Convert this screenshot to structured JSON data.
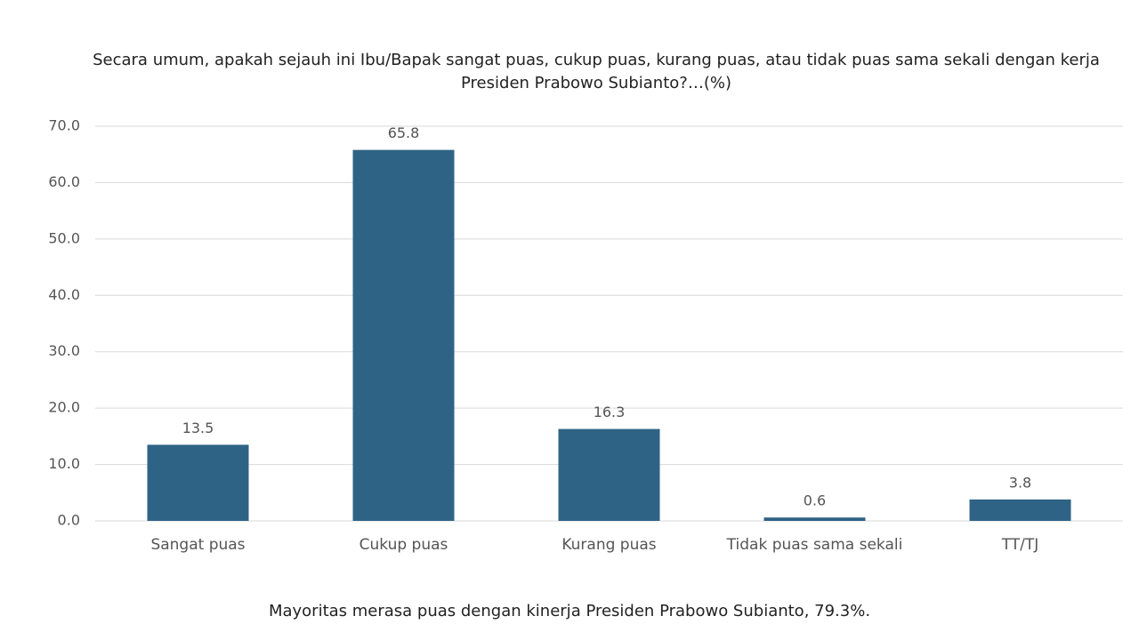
{
  "chart_data": {
    "type": "bar",
    "title": "Secara umum, apakah sejauh ini Ibu/Bapak sangat puas, cukup puas, kurang puas, atau tidak puas sama sekali dengan kerja Presiden Prabowo Subianto?…(%)",
    "categories": [
      "Sangat puas",
      "Cukup puas",
      "Kurang puas",
      "Tidak puas sama sekali",
      "TT/TJ"
    ],
    "values": [
      13.5,
      65.8,
      16.3,
      0.6,
      3.8
    ],
    "color": "#2f6386",
    "ylim": [
      0,
      70
    ],
    "yticks": [
      {
        "value": 0,
        "label": "0.0"
      },
      {
        "value": 10,
        "label": "10.0"
      },
      {
        "value": 20,
        "label": "20.0"
      },
      {
        "value": 30,
        "label": "30.0"
      },
      {
        "value": 40,
        "label": "40.0"
      },
      {
        "value": 50,
        "label": "50.0"
      },
      {
        "value": 60,
        "label": "60.0"
      },
      {
        "value": 70,
        "label": "70.0"
      }
    ],
    "grid": true,
    "annotation": "Mayoritas merasa puas dengan kinerja Presiden Prabowo Subianto, 79.3%."
  }
}
